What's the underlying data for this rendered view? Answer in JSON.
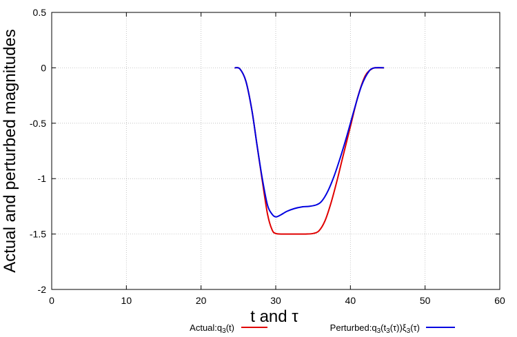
{
  "chart_data": {
    "type": "line",
    "title": "",
    "xlabel": "t and τ",
    "ylabel": "Actual and perturbed magnitudes",
    "xlim": [
      0,
      60
    ],
    "ylim": [
      -2,
      0.5
    ],
    "xticks": [
      "0",
      "10",
      "20",
      "30",
      "40",
      "50",
      "60"
    ],
    "yticks": [
      "0.5",
      "0",
      "-0.5",
      "-1",
      "-1.5",
      "-2"
    ],
    "grid": true,
    "legend_position": "bottom",
    "series": [
      {
        "name": "Actual:q3(t)",
        "legend": {
          "base": "Actual:q",
          "sub1": "3",
          "tail": "(t)"
        },
        "color": "#e00000",
        "x": [
          24.5,
          25.2,
          26.0,
          26.8,
          27.5,
          28.2,
          28.9,
          29.5,
          30.0,
          31.0,
          32.0,
          33.0,
          34.0,
          35.0,
          35.8,
          36.6,
          37.4,
          38.2,
          39.0,
          40.0,
          41.0,
          42.0,
          43.0,
          43.6,
          44.5
        ],
        "y": [
          0,
          -0.01,
          -0.12,
          -0.38,
          -0.7,
          -1.02,
          -1.32,
          -1.46,
          -1.495,
          -1.5,
          -1.5,
          -1.5,
          -1.5,
          -1.495,
          -1.47,
          -1.38,
          -1.22,
          -1.02,
          -0.8,
          -0.53,
          -0.26,
          -0.07,
          -0.005,
          0,
          0
        ]
      },
      {
        "name": "Perturbed:q3(t3(τ))ξ3(τ)",
        "legend": {
          "base": "Perturbed:q",
          "sub1": "3",
          "mid": "(t",
          "sub2": "3",
          "mid2": "(τ))ξ",
          "sub3": "3",
          "tail": "(τ)"
        },
        "color": "#0000e0",
        "x": [
          24.5,
          25.2,
          26.0,
          26.8,
          27.5,
          28.2,
          28.9,
          29.5,
          30.0,
          30.6,
          31.5,
          32.5,
          33.5,
          34.5,
          35.5,
          36.2,
          37.0,
          37.8,
          38.6,
          39.5,
          40.5,
          41.5,
          42.5,
          43.3,
          44.5
        ],
        "y": [
          0,
          -0.01,
          -0.12,
          -0.38,
          -0.7,
          -1.0,
          -1.24,
          -1.32,
          -1.345,
          -1.33,
          -1.295,
          -1.27,
          -1.255,
          -1.25,
          -1.235,
          -1.2,
          -1.11,
          -0.98,
          -0.82,
          -0.62,
          -0.38,
          -0.16,
          -0.03,
          0,
          0
        ]
      }
    ]
  }
}
